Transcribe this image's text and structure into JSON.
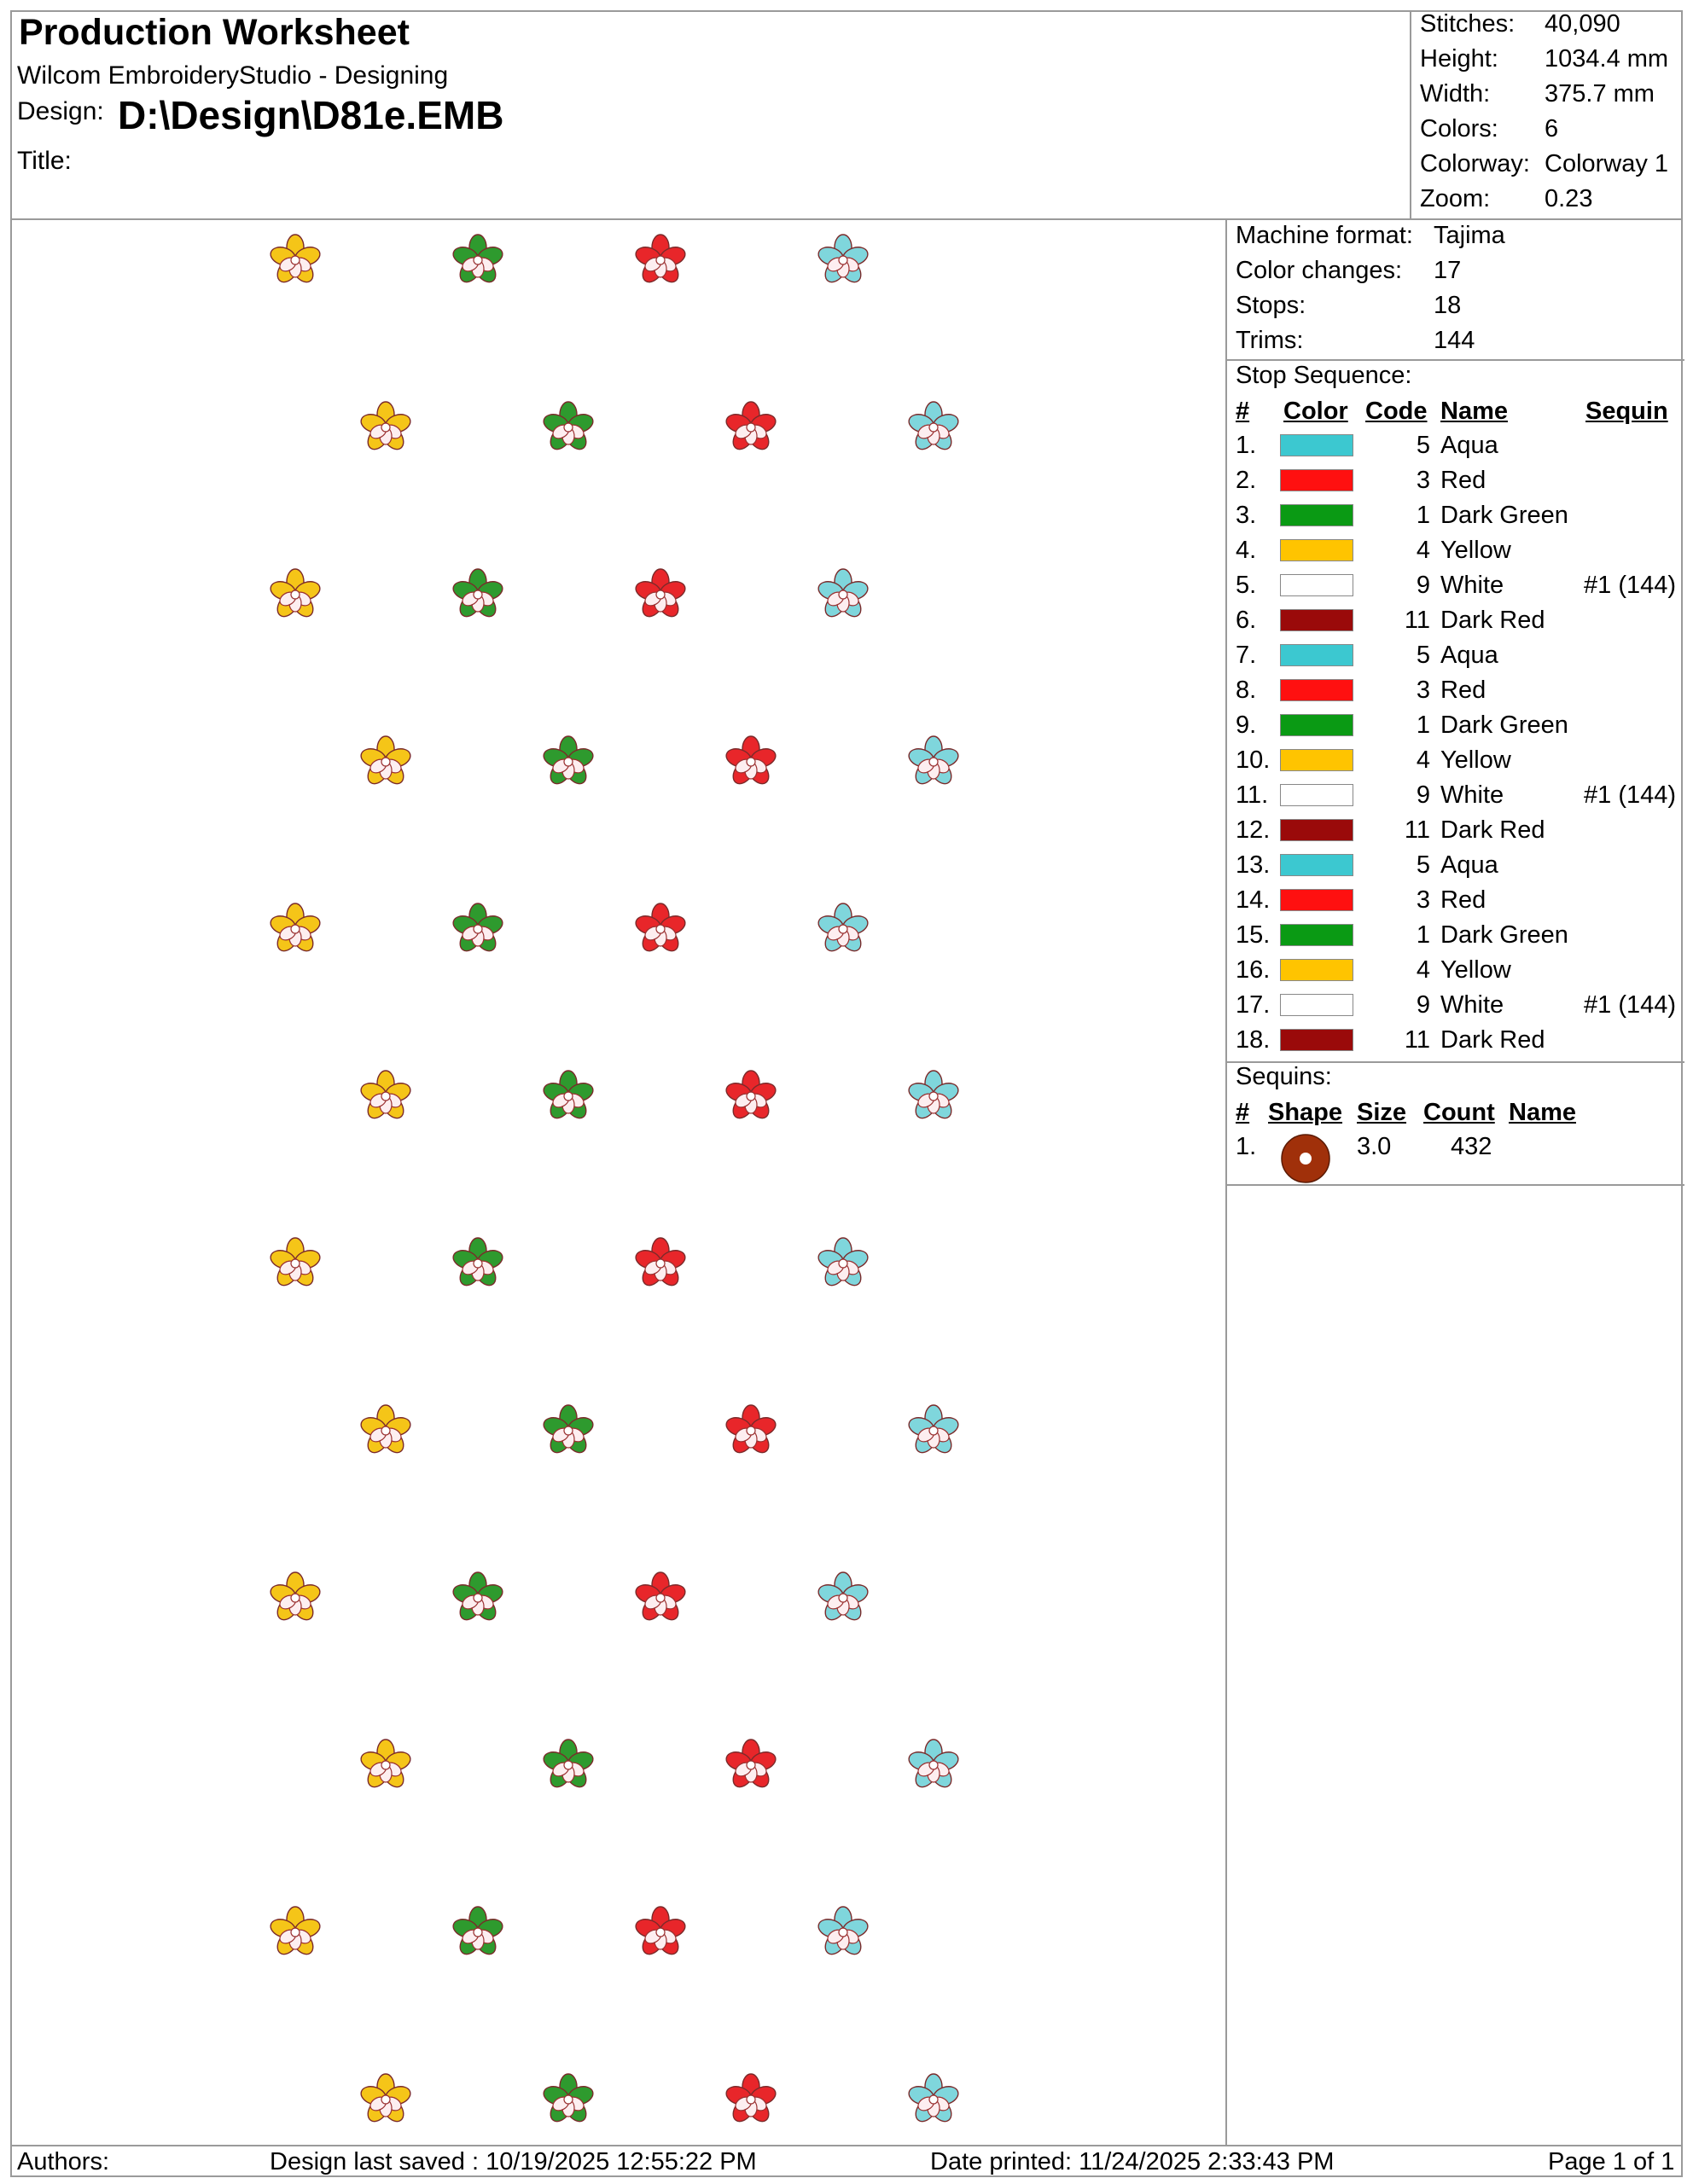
{
  "header": {
    "title": "Production Worksheet",
    "software": "Wilcom EmbroideryStudio - Designing",
    "design_label": "Design:",
    "design_value": "D:\\Design\\D81e.EMB",
    "title_label": "Title:"
  },
  "stats": [
    {
      "label": "Stitches:",
      "value": "40,090"
    },
    {
      "label": "Height:",
      "value": "1034.4 mm"
    },
    {
      "label": "Width:",
      "value": "375.7 mm"
    },
    {
      "label": "Colors:",
      "value": "6"
    },
    {
      "label": "Colorway:",
      "value": "Colorway 1"
    },
    {
      "label": "Zoom:",
      "value": "0.23"
    }
  ],
  "machine": [
    {
      "label": "Machine format:",
      "value": "Tajima"
    },
    {
      "label": "Color changes:",
      "value": "17"
    },
    {
      "label": "Stops:",
      "value": "18"
    },
    {
      "label": "Trims:",
      "value": "144"
    }
  ],
  "stop_sequence": {
    "title": "Stop Sequence:",
    "headers": {
      "num": "#",
      "color": "Color",
      "code": "Code",
      "name": "Name",
      "sequin": "Sequin"
    },
    "rows": [
      {
        "num": "1.",
        "color": "#3cc8d0",
        "code": "5",
        "name": "Aqua",
        "sequin": ""
      },
      {
        "num": "2.",
        "color": "#ff1010",
        "code": "3",
        "name": "Red",
        "sequin": ""
      },
      {
        "num": "3.",
        "color": "#0a9a14",
        "code": "1",
        "name": "Dark Green",
        "sequin": ""
      },
      {
        "num": "4.",
        "color": "#ffc400",
        "code": "4",
        "name": "Yellow",
        "sequin": ""
      },
      {
        "num": "5.",
        "color": "#ffffff",
        "code": "9",
        "name": "White",
        "sequin": "#1 (144)"
      },
      {
        "num": "6.",
        "color": "#9a0a0a",
        "code": "11",
        "name": "Dark Red",
        "sequin": ""
      },
      {
        "num": "7.",
        "color": "#3cc8d0",
        "code": "5",
        "name": "Aqua",
        "sequin": ""
      },
      {
        "num": "8.",
        "color": "#ff1010",
        "code": "3",
        "name": "Red",
        "sequin": ""
      },
      {
        "num": "9.",
        "color": "#0a9a14",
        "code": "1",
        "name": "Dark Green",
        "sequin": ""
      },
      {
        "num": "10.",
        "color": "#ffc400",
        "code": "4",
        "name": "Yellow",
        "sequin": ""
      },
      {
        "num": "11.",
        "color": "#ffffff",
        "code": "9",
        "name": "White",
        "sequin": "#1 (144)"
      },
      {
        "num": "12.",
        "color": "#9a0a0a",
        "code": "11",
        "name": "Dark Red",
        "sequin": ""
      },
      {
        "num": "13.",
        "color": "#3cc8d0",
        "code": "5",
        "name": "Aqua",
        "sequin": ""
      },
      {
        "num": "14.",
        "color": "#ff1010",
        "code": "3",
        "name": "Red",
        "sequin": ""
      },
      {
        "num": "15.",
        "color": "#0a9a14",
        "code": "1",
        "name": "Dark Green",
        "sequin": ""
      },
      {
        "num": "16.",
        "color": "#ffc400",
        "code": "4",
        "name": "Yellow",
        "sequin": ""
      },
      {
        "num": "17.",
        "color": "#ffffff",
        "code": "9",
        "name": "White",
        "sequin": "#1 (144)"
      },
      {
        "num": "18.",
        "color": "#9a0a0a",
        "code": "11",
        "name": "Dark Red",
        "sequin": ""
      }
    ]
  },
  "sequins": {
    "title": "Sequins:",
    "headers": {
      "num": "#",
      "shape": "Shape",
      "size": "Size",
      "count": "Count",
      "name": "Name"
    },
    "rows": [
      {
        "num": "1.",
        "shape_icon": "round-sequin-icon",
        "shape_color": "#a0300a",
        "size": "3.0",
        "count": "432",
        "name": ""
      }
    ]
  },
  "footer": {
    "authors": "Authors:",
    "saved": "Design last saved : 10/19/2025 12:55:22 PM",
    "printed": "Date printed: 11/24/2025 2:33:43 PM",
    "page": "Page 1 of 1"
  },
  "design_preview": {
    "motif_icon": "flower-motif-icon",
    "motif_colors": [
      "#f5c518",
      "#2e9a2e",
      "#e8262a",
      "#7fd6dc"
    ],
    "rows": 12,
    "motifs_per_row": 4
  }
}
